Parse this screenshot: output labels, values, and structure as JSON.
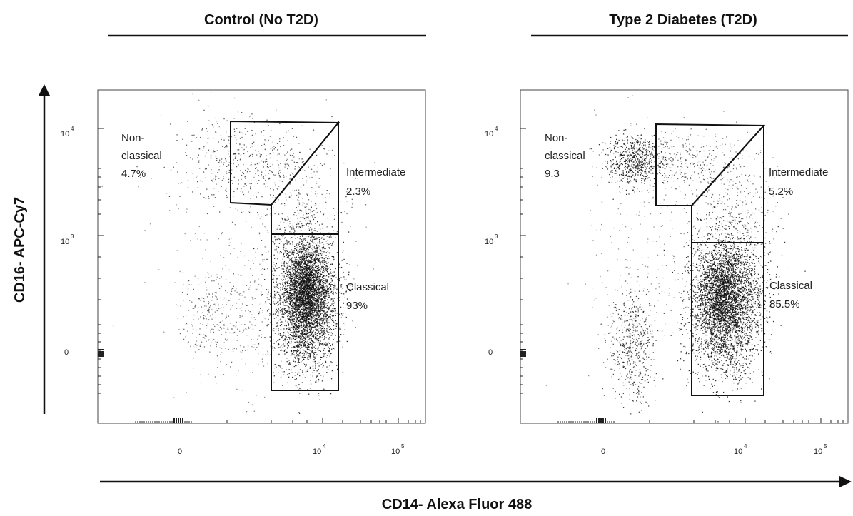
{
  "chart_data": [
    {
      "type": "scatter",
      "title": "Control (No T2D)",
      "xlabel": "CD14- Alexa Fluor 488",
      "ylabel": "CD16- APC-Cy7",
      "x_scale": "biexponential",
      "y_scale": "biexponential",
      "x_ticks": [
        {
          "base": "0",
          "exp": ""
        },
        {
          "base": "10",
          "exp": "4"
        },
        {
          "base": "10",
          "exp": "5"
        }
      ],
      "y_ticks": [
        {
          "base": "0",
          "exp": ""
        },
        {
          "base": "10",
          "exp": "3"
        },
        {
          "base": "10",
          "exp": "4"
        }
      ],
      "gates": [
        {
          "name": "Non-classical",
          "lines": [
            "Non-",
            "classical",
            "4.7%"
          ],
          "percent": 4.7
        },
        {
          "name": "Intermediate",
          "lines": [
            "Intermediate",
            "2.3%"
          ],
          "percent": 2.3
        },
        {
          "name": "Classical",
          "lines": [
            "Classical",
            "93%"
          ],
          "percent": 93
        }
      ]
    },
    {
      "type": "scatter",
      "title": "Type 2 Diabetes (T2D)",
      "xlabel": "CD14- Alexa Fluor 488",
      "ylabel": "CD16- APC-Cy7",
      "x_scale": "biexponential",
      "y_scale": "biexponential",
      "x_ticks": [
        {
          "base": "0",
          "exp": ""
        },
        {
          "base": "10",
          "exp": "4"
        },
        {
          "base": "10",
          "exp": "5"
        }
      ],
      "y_ticks": [
        {
          "base": "0",
          "exp": ""
        },
        {
          "base": "10",
          "exp": "3"
        },
        {
          "base": "10",
          "exp": "4"
        }
      ],
      "gates": [
        {
          "name": "Non-classical",
          "lines": [
            "Non-",
            "classical",
            "9.3"
          ],
          "percent": 9.3
        },
        {
          "name": "Intermediate",
          "lines": [
            "Intermediate",
            "5.2%"
          ],
          "percent": 5.2
        },
        {
          "name": "Classical",
          "lines": [
            "Classical",
            "85.5%"
          ],
          "percent": 85.5
        }
      ]
    }
  ],
  "colors": {
    "dots": "#111111",
    "gates": "#111111",
    "frame": "#444444"
  }
}
